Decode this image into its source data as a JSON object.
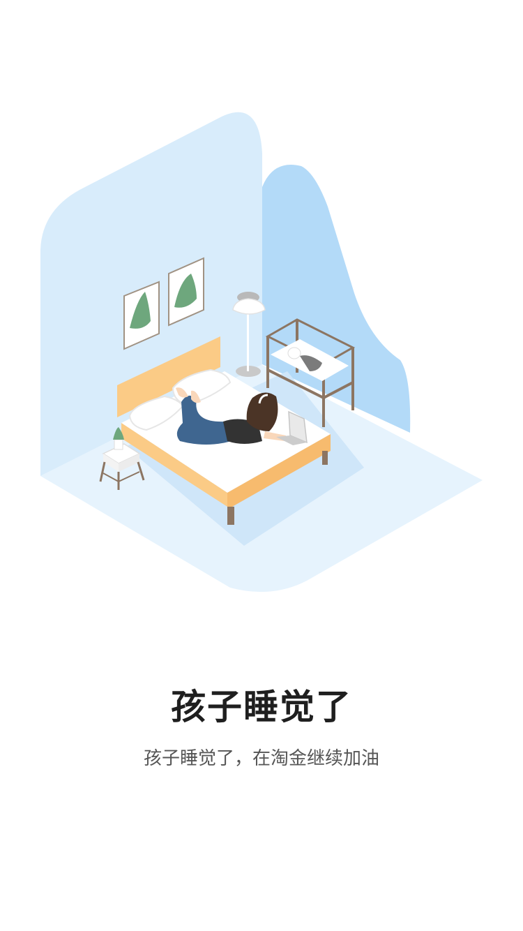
{
  "onboarding": {
    "title": "孩子睡觉了",
    "subtitle": "孩子睡觉了，在淘金继续加油"
  },
  "illustration": {
    "icon": "bedroom-night-illustration",
    "colors": {
      "floor": "#e3f1fc",
      "wall_light": "#d7ebfb",
      "wall_dark": "#b6dcf8",
      "bed_frame": "#fcd08f",
      "bedding": "#ffffff",
      "wood": "#8c7562",
      "hair": "#4b3426",
      "jeans": "#3f6690",
      "plant": "#6ea77d"
    }
  }
}
